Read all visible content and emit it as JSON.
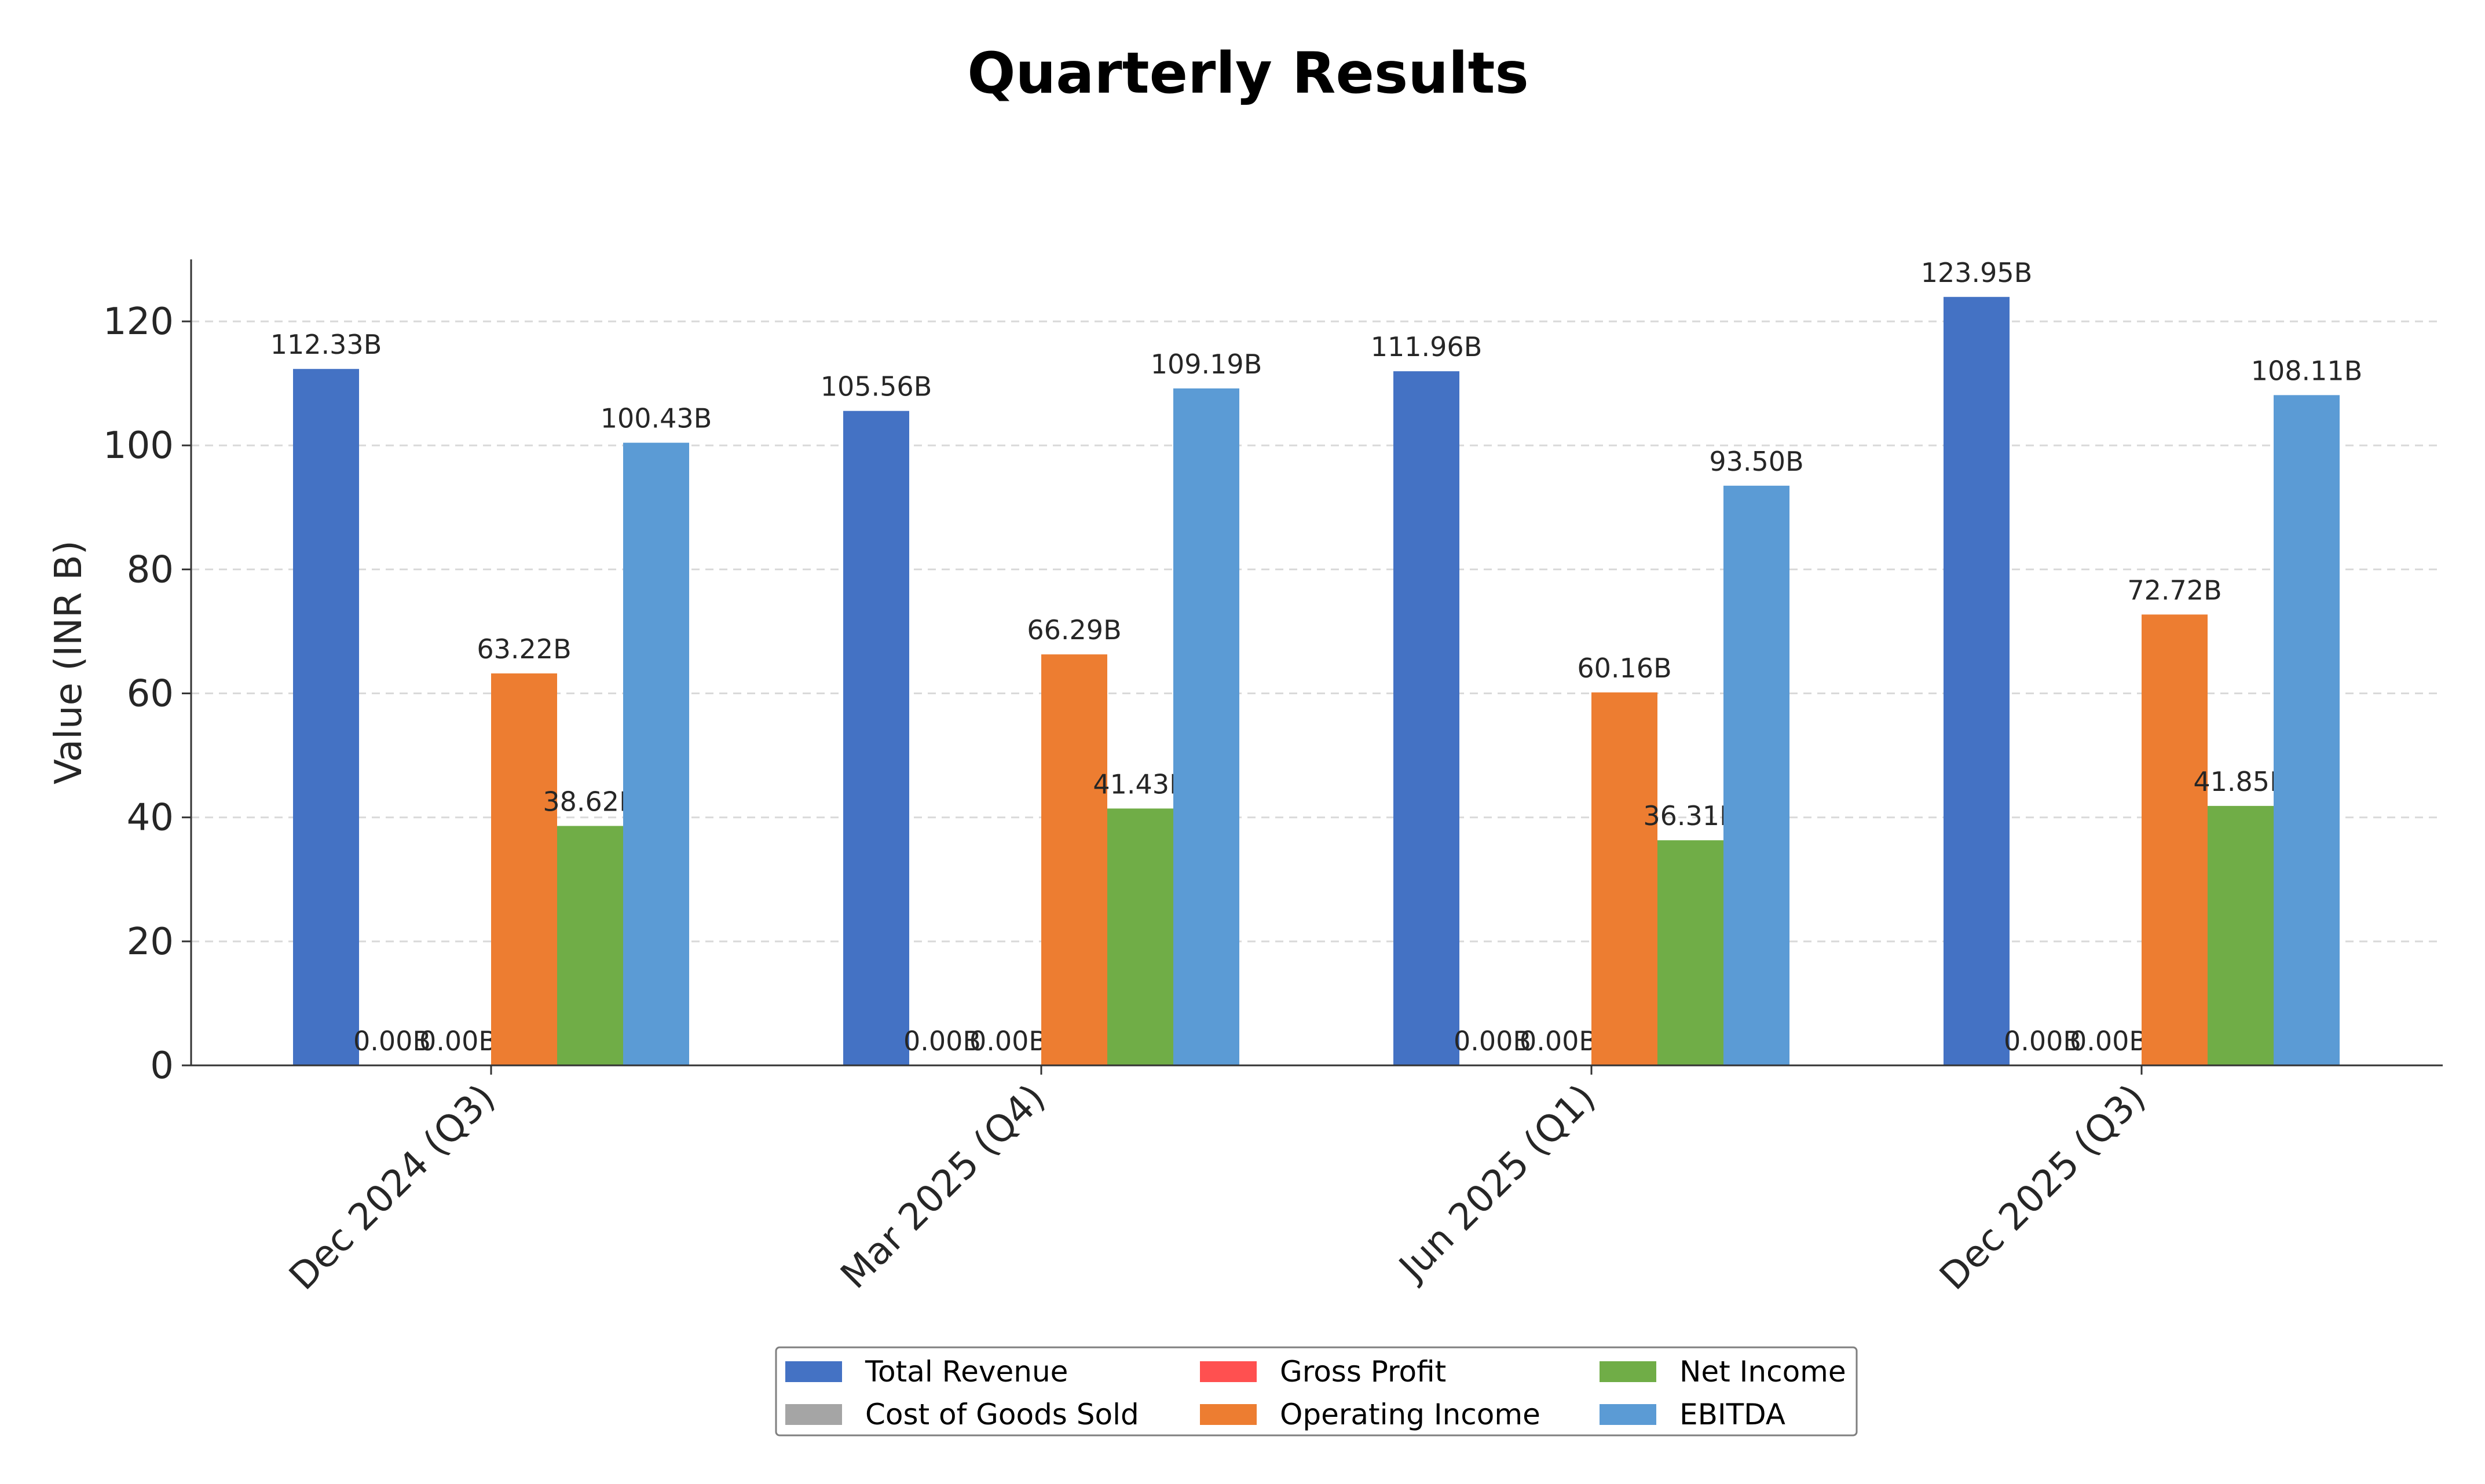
{
  "chart_data": {
    "type": "bar",
    "title": "Quarterly Results",
    "xlabel": "",
    "ylabel": "Value (INR B)",
    "ylim": [
      0,
      130
    ],
    "yticks": [
      0,
      20,
      40,
      60,
      80,
      100,
      120
    ],
    "grid": true,
    "legend_position": "bottom-center",
    "categories": [
      "Dec 2024 (Q3)",
      "Mar 2025 (Q4)",
      "Jun 2025 (Q1)",
      "Dec 2025 (Q3)"
    ],
    "series": [
      {
        "name": "Total Revenue",
        "color": "#4472c4",
        "values": [
          112.33,
          105.56,
          111.96,
          123.95
        ],
        "labels": [
          "112.33B",
          "105.56B",
          "111.96B",
          "123.95B"
        ]
      },
      {
        "name": "Cost of Goods Sold",
        "color": "#a5a5a5",
        "values": [
          0,
          0,
          0,
          0
        ],
        "labels": [
          "0.00B",
          "0.00B",
          "0.00B",
          "0.00B"
        ]
      },
      {
        "name": "Gross Profit",
        "color": "#ff5050",
        "values": [
          0,
          0,
          0,
          0
        ],
        "labels": [
          "0.00B",
          "0.00B",
          "0.00B",
          "0.00B"
        ]
      },
      {
        "name": "Operating Income",
        "color": "#ed7d31",
        "values": [
          63.22,
          66.29,
          60.16,
          72.72
        ],
        "labels": [
          "63.22B",
          "66.29B",
          "60.16B",
          "72.72B"
        ]
      },
      {
        "name": "Net Income",
        "color": "#70ad47",
        "values": [
          38.62,
          41.43,
          36.31,
          41.85
        ],
        "labels": [
          "38.62B",
          "41.43B",
          "36.31B",
          "41.85B"
        ]
      },
      {
        "name": "EBITDA",
        "color": "#5b9bd5",
        "values": [
          100.43,
          109.19,
          93.5,
          108.11
        ],
        "labels": [
          "100.43B",
          "109.19B",
          "93.50B",
          "108.11B"
        ]
      }
    ]
  }
}
